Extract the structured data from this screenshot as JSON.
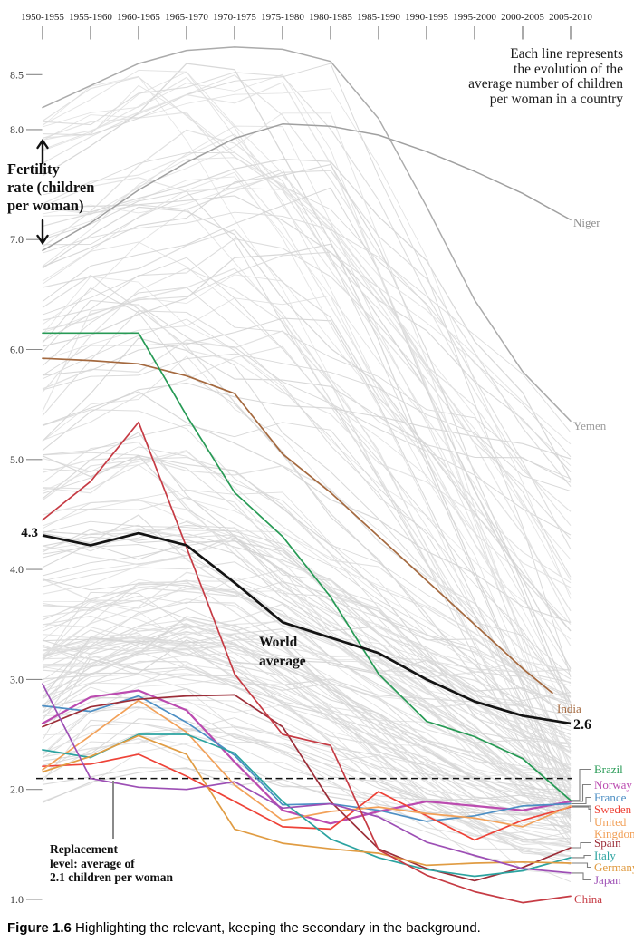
{
  "figure": {
    "annotation_top_right": [
      "Each line represents",
      "the evolution of the",
      "average number of children",
      "per woman in a country"
    ],
    "y_axis_title_lines": [
      "Fertility",
      "rate (children",
      "per woman)"
    ],
    "world_start_label": "4.3",
    "world_end_label": "2.6",
    "world_label_lines": [
      "World",
      "average"
    ],
    "replacement_lines": [
      "Replacement",
      "level: average of",
      "2.1 children per woman"
    ],
    "caption_bold": "Figure 1.6",
    "caption_rest": " Highlighting the relevant, keeping the secondary in the background."
  },
  "chart_data": {
    "type": "line",
    "title": "Fertility rate (children per woman), 1950-2010",
    "x_labels": [
      "1950-1955",
      "1955-1960",
      "1960-1965",
      "1965-1970",
      "1970-1975",
      "1975-1980",
      "1980-1985",
      "1985-1990",
      "1990-1995",
      "1995-2000",
      "2000-2005",
      "2005-2010"
    ],
    "y_ticks": [
      8.5,
      8.0,
      7.0,
      6.0,
      5.0,
      4.0,
      3.0,
      2.0,
      1.0
    ],
    "ylim": [
      0.9,
      8.85
    ],
    "grid": "short left tick dashes only",
    "legend": "direct line labels at right",
    "replacement_level": 2.1,
    "world": {
      "name": "World average",
      "color": "#141414",
      "width": 2.7,
      "values": [
        4.31,
        4.22,
        4.33,
        4.22,
        3.88,
        3.52,
        3.38,
        3.24,
        3.0,
        2.8,
        2.67,
        2.6
      ]
    },
    "series": [
      {
        "name": "Niger",
        "color": "#a0a0a0",
        "label_color": "#8f8f8f",
        "width": 1.5,
        "values": [
          6.9,
          7.15,
          7.45,
          7.7,
          7.92,
          8.05,
          8.03,
          7.95,
          7.8,
          7.62,
          7.42,
          7.18
        ]
      },
      {
        "name": "Yemen",
        "color": "#ababab",
        "label_color": "#9c9c9c",
        "width": 1.5,
        "values": [
          8.2,
          8.4,
          8.6,
          8.72,
          8.75,
          8.73,
          8.62,
          8.1,
          7.3,
          6.45,
          5.8,
          5.35
        ]
      },
      {
        "name": "India",
        "color": "#a4693f",
        "width": 1.7,
        "values": [
          5.92,
          5.9,
          5.87,
          5.76,
          5.6,
          5.05,
          4.7,
          4.3,
          3.9,
          3.5,
          3.1,
          2.74
        ]
      },
      {
        "name": "Brazil",
        "color": "#279a55",
        "width": 1.7,
        "values": [
          6.15,
          6.15,
          6.15,
          5.4,
          4.7,
          4.3,
          3.75,
          3.05,
          2.62,
          2.48,
          2.28,
          1.9
        ]
      },
      {
        "name": "Norway",
        "color": "#bb4bb0",
        "width": 2.2,
        "values": [
          2.6,
          2.84,
          2.9,
          2.72,
          2.25,
          1.81,
          1.69,
          1.8,
          1.89,
          1.85,
          1.81,
          1.89
        ]
      },
      {
        "name": "France",
        "color": "#4d8fc4",
        "width": 1.7,
        "values": [
          2.76,
          2.71,
          2.85,
          2.61,
          2.31,
          1.86,
          1.87,
          1.81,
          1.71,
          1.76,
          1.85,
          1.87
        ]
      },
      {
        "name": "Sweden",
        "color": "#ee4237",
        "width": 1.7,
        "values": [
          2.21,
          2.23,
          2.32,
          2.12,
          1.89,
          1.66,
          1.64,
          1.98,
          1.76,
          1.54,
          1.72,
          1.84
        ]
      },
      {
        "name": "United Kingdom",
        "color": "#f2a159",
        "width": 1.7,
        "label_lines": [
          "United",
          "Kingdom"
        ],
        "values": [
          2.18,
          2.49,
          2.81,
          2.52,
          2.04,
          1.72,
          1.8,
          1.84,
          1.78,
          1.74,
          1.66,
          1.85
        ]
      },
      {
        "name": "Spain",
        "color": "#9c2d38",
        "width": 1.7,
        "values": [
          2.57,
          2.75,
          2.82,
          2.85,
          2.86,
          2.57,
          1.89,
          1.46,
          1.28,
          1.17,
          1.29,
          1.47
        ]
      },
      {
        "name": "Italy",
        "color": "#2ba3a0",
        "width": 1.7,
        "values": [
          2.36,
          2.29,
          2.5,
          2.5,
          2.33,
          1.89,
          1.55,
          1.38,
          1.27,
          1.21,
          1.26,
          1.38
        ]
      },
      {
        "name": "Germany",
        "color": "#e09c43",
        "width": 1.7,
        "values": [
          2.16,
          2.3,
          2.49,
          2.32,
          1.64,
          1.51,
          1.46,
          1.42,
          1.31,
          1.33,
          1.34,
          1.33
        ]
      },
      {
        "name": "Japan",
        "color": "#9d4fb5",
        "width": 1.7,
        "values": [
          2.96,
          2.1,
          2.02,
          2.0,
          2.07,
          1.83,
          1.87,
          1.75,
          1.52,
          1.4,
          1.28,
          1.24
        ]
      },
      {
        "name": "China",
        "color": "#c63b44",
        "width": 1.7,
        "values": [
          4.45,
          4.8,
          5.34,
          4.2,
          3.05,
          2.5,
          2.4,
          1.45,
          1.22,
          1.07,
          0.97,
          1.03
        ]
      }
    ],
    "background": {
      "note": "unlabeled gray country lines in background",
      "count": 170,
      "seed": 11,
      "colors": [
        "#d9d9d9",
        "#dedede",
        "#d4d4d4",
        "#e1e1e1"
      ],
      "opacity": 0.9
    }
  }
}
